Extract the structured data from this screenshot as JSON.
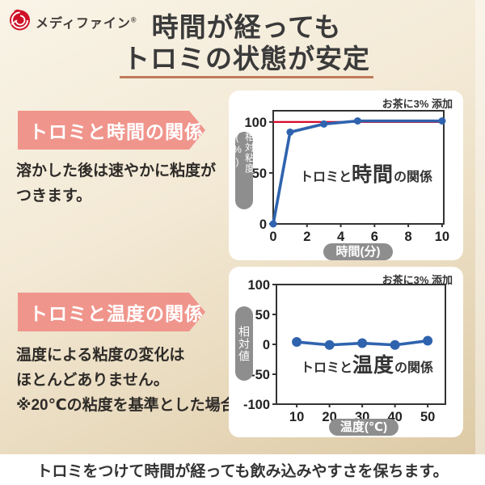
{
  "brand": {
    "logo_text": "メディファイン",
    "mark": "®"
  },
  "title": {
    "line1": "時間が経っても",
    "line2": "トロミの状態が安定"
  },
  "sections": [
    {
      "label": "トロミと時間の関係",
      "description_lines": [
        "溶かした後は速やかに粘度が",
        "つきます。"
      ]
    },
    {
      "label": "トロミと温度の関係",
      "description_lines": [
        "温度による粘度の変化は",
        "ほとんどありません。",
        "※20℃の粘度を基準とした場合"
      ]
    }
  ],
  "footer": {
    "text": "トロミをつけて時間が経っても飲み込みやすさを保ちます。"
  },
  "colors": {
    "accent_pink": "#f0958c",
    "pill_gray": "#8e8e8e",
    "title_underline": "#bf7a5a",
    "line_blue": "#2f63ae",
    "ref_red": "#d7092c"
  },
  "chart_data": [
    {
      "type": "line",
      "title_parts": {
        "prefix": "トロミと",
        "emphasis": "時間",
        "suffix": "の関係"
      },
      "annotation": "お茶に3% 添加",
      "xlabel": "時間(分)",
      "ylabel": "相対粘度(%)",
      "x": [
        0,
        1,
        3,
        5,
        10
      ],
      "y": [
        0,
        90,
        98,
        101,
        101
      ],
      "xticks": [
        0,
        2,
        4,
        6,
        8,
        10
      ],
      "yticks": [
        0,
        50,
        100
      ],
      "xlim": [
        0,
        10.1
      ],
      "ylim": [
        0,
        111
      ],
      "refline_y": 100,
      "refline_color": "#d7092c",
      "line_color": "#2f63ae",
      "grid": false,
      "legend": false
    },
    {
      "type": "line",
      "title_parts": {
        "prefix": "トロミと",
        "emphasis": "温度",
        "suffix": "の関係"
      },
      "annotation": "お茶に3% 添加",
      "xlabel": "温度(℃)",
      "ylabel": "相対値",
      "x": [
        10,
        20,
        30,
        40,
        50
      ],
      "y": [
        4,
        -1,
        2,
        -1,
        6
      ],
      "xticks": [
        10,
        20,
        30,
        40,
        50
      ],
      "yticks": [
        100,
        50,
        0,
        -50,
        -100
      ],
      "xlim": [
        3.8,
        55.4
      ],
      "ylim": [
        -100,
        100
      ],
      "refline_y": null,
      "line_color": "#2f63ae",
      "grid": false,
      "legend": false
    }
  ]
}
